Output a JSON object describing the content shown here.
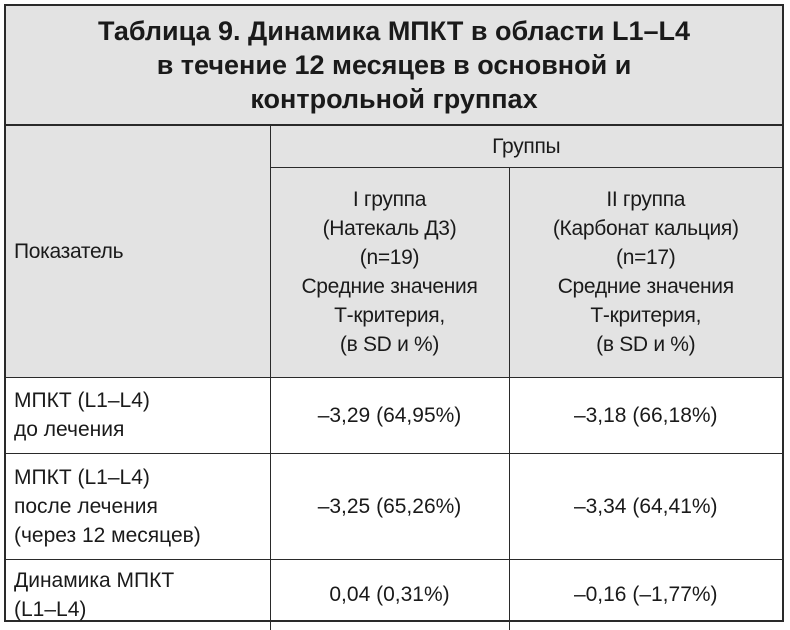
{
  "title": {
    "lines": [
      "Таблица 9. Динамика МПКТ в области L1–L4",
      "в течение 12 месяцев в основной и",
      "контрольной группах"
    ]
  },
  "header": {
    "indicator_label": "Показатель",
    "groups_label": "Группы",
    "group1": {
      "lines": [
        "I группа",
        "(Натекаль Д3)",
        "(n=19)",
        "Средние значения",
        "Т-критерия,",
        "(в SD и %)"
      ]
    },
    "group2": {
      "lines": [
        "II группа",
        "(Карбонат кальция)",
        "(n=17)",
        "Средние значения",
        "Т-критерия,",
        "(в SD и %)"
      ]
    }
  },
  "rows": [
    {
      "indicator_lines": [
        "МПКТ (L1–L4)",
        "до лечения"
      ],
      "group1": "–3,29 (64,95%)",
      "group2": "–3,18 (66,18%)"
    },
    {
      "indicator_lines": [
        "МПКТ (L1–L4)",
        "после лечения",
        "(через 12 месяцев)"
      ],
      "group1": "–3,25 (65,26%)",
      "group2": "–3,34 (64,41%)"
    },
    {
      "indicator_lines": [
        "Динамика МПКТ",
        "(L1–L4)"
      ],
      "group1": "0,04 (0,31%)",
      "group2": "–0,16 (–1,77%)"
    }
  ]
}
